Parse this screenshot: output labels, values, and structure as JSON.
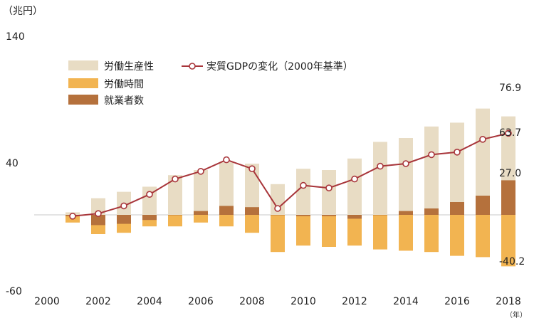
{
  "chart_data": {
    "type": "bar",
    "y_unit": "（兆円）",
    "x_unit": "（年）",
    "ylim": [
      -60,
      140
    ],
    "yticks": [
      140,
      40,
      -60
    ],
    "x_tick_labels": [
      2000,
      2002,
      2004,
      2006,
      2008,
      2010,
      2012,
      2014,
      2016,
      2018
    ],
    "x": [
      2001,
      2002,
      2003,
      2004,
      2005,
      2006,
      2007,
      2008,
      2009,
      2010,
      2011,
      2012,
      2013,
      2014,
      2015,
      2016,
      2017,
      2018
    ],
    "legend_placement": "top-left",
    "series": [
      {
        "name": "労働生産性",
        "kind": "bar",
        "color": "#e8dcc4",
        "values": [
          2,
          13,
          18,
          22,
          31,
          35,
          41,
          40,
          24,
          36,
          35,
          44,
          57,
          60,
          69,
          72,
          83,
          76.9
        ]
      },
      {
        "name": "労働時間",
        "kind": "bar",
        "color": "#f2b451",
        "values": [
          -6,
          -15,
          -14,
          -9,
          -9,
          -6,
          -9,
          -14,
          -29,
          -24,
          -25,
          -24,
          -27,
          -28,
          -29,
          -32,
          -33,
          -40.2
        ]
      },
      {
        "name": "就業者数",
        "kind": "bar",
        "color": "#b5713c",
        "values": [
          -1,
          -8,
          -7,
          -4,
          0,
          3,
          7,
          6,
          0,
          -1,
          -1,
          -3,
          0,
          3,
          5,
          10,
          15,
          27.0
        ]
      },
      {
        "name": "実質GDPの変化（2000年基準）",
        "kind": "line",
        "color": "#a8353a",
        "values": [
          -1,
          1,
          7,
          16,
          28,
          34,
          43,
          36,
          5,
          23,
          21,
          28,
          38,
          40,
          47,
          49,
          59,
          63.7
        ]
      }
    ],
    "data_labels": {
      "productivity_last": "76.9",
      "gdp_last": "63.7",
      "employment_last": "27.0",
      "hours_last": "-40.2"
    },
    "grid": false
  }
}
